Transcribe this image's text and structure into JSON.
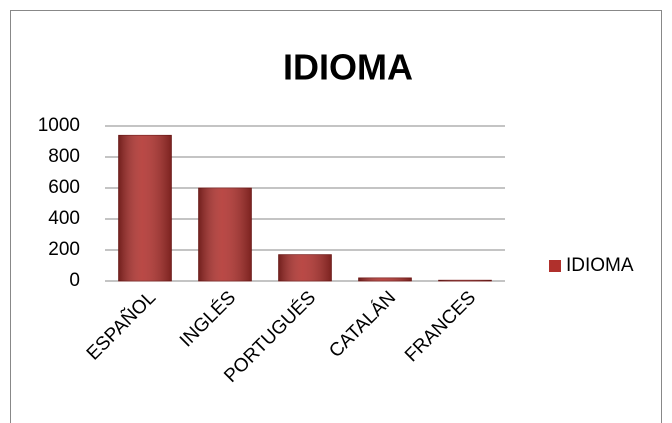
{
  "chart_data": {
    "type": "bar",
    "title": "IDIOMA",
    "categories": [
      "ESPAÑOL",
      "INGLÉS",
      "PORTUGUÉS",
      "CATALÁN",
      "FRANCES"
    ],
    "series": [
      {
        "name": "IDIOMA",
        "color": "#b0302c",
        "values": [
          940,
          600,
          170,
          20,
          5
        ]
      }
    ],
    "ylim": [
      0,
      1000
    ],
    "yticks": [
      0,
      200,
      400,
      600,
      800,
      1000
    ],
    "grid": true,
    "legend": "right"
  }
}
